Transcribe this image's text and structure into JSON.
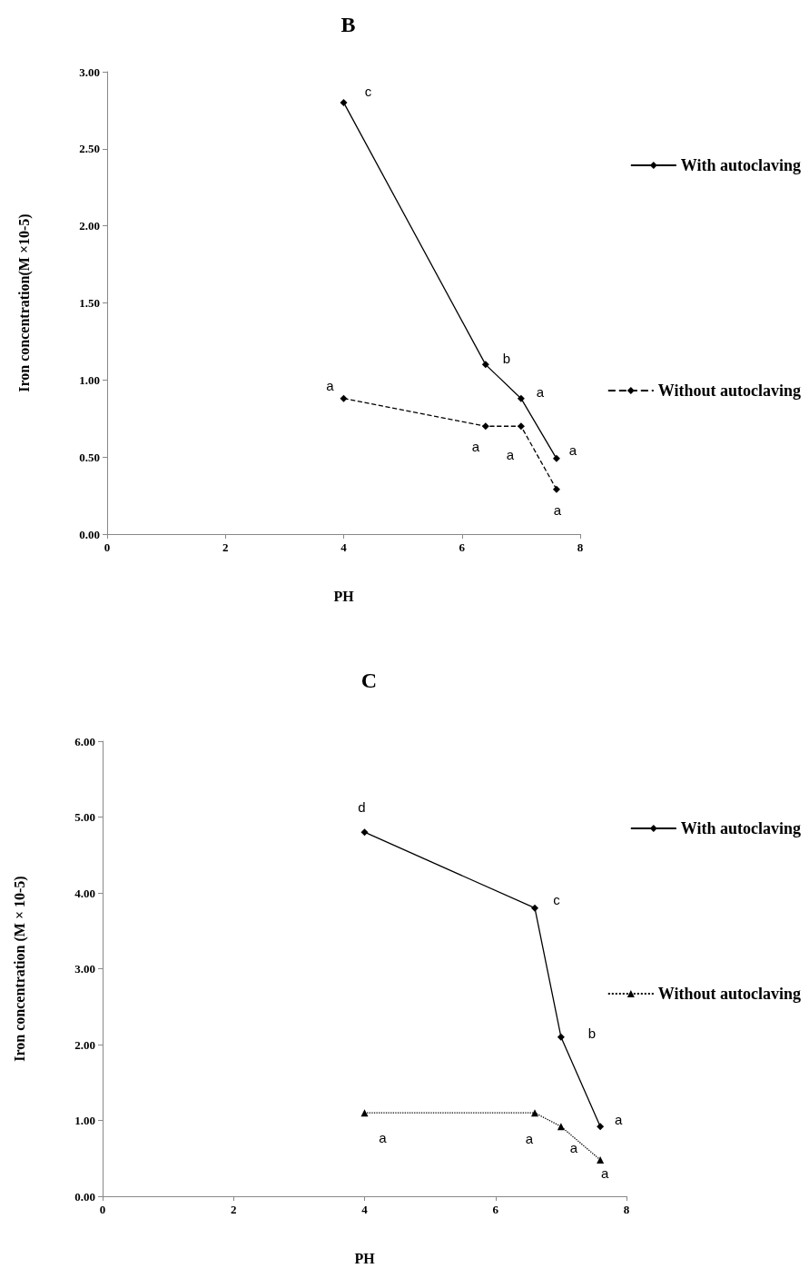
{
  "chart_data": [
    {
      "type": "line",
      "title": "B",
      "xlabel": "PH",
      "ylabel": "Iron concentration(M ×10-5)",
      "xlim": [
        0,
        8
      ],
      "xticks": [
        0,
        2,
        4,
        6,
        8
      ],
      "ylim": [
        0,
        3
      ],
      "yticks": [
        {
          "value": 0,
          "label": "0.00"
        },
        {
          "value": 0.5,
          "label": "0.50"
        },
        {
          "value": 1,
          "label": "1.00"
        },
        {
          "value": 1.5,
          "label": "1.50"
        },
        {
          "value": 2,
          "label": "2.00"
        },
        {
          "value": 2.5,
          "label": "2.50"
        },
        {
          "value": 3,
          "label": "3.00"
        }
      ],
      "grid": false,
      "legend": "right",
      "series": [
        {
          "name": "With autoclaving",
          "color": "#000000",
          "x": [
            4,
            6.4,
            7,
            7.6
          ],
          "values": [
            2.8,
            1.1,
            0.88,
            0.49
          ],
          "marker": "diamond",
          "line_style": "solid"
        },
        {
          "name": "Without autoclaving",
          "color": "#000000",
          "x": [
            4,
            6.4,
            7,
            7.6
          ],
          "values": [
            0.88,
            0.7,
            0.7,
            0.29
          ],
          "marker": "diamond",
          "line_style": "dashed"
        }
      ],
      "annotations": [
        {
          "text": "c",
          "x": 4,
          "y": 2.8
        },
        {
          "text": "b",
          "x": 6.4,
          "y": 1.1
        },
        {
          "text": "a",
          "x": 7,
          "y": 0.88
        },
        {
          "text": "a",
          "x": 7.6,
          "y": 0.49
        },
        {
          "text": "a",
          "x": 4,
          "y": 0.88
        },
        {
          "text": "a",
          "x": 6.4,
          "y": 0.7
        },
        {
          "text": "a",
          "x": 7,
          "y": 0.7
        },
        {
          "text": "a",
          "x": 7.6,
          "y": 0.29
        }
      ]
    },
    {
      "type": "line",
      "title": "C",
      "xlabel": "PH",
      "ylabel": "Iron concentration (M × 10-5)",
      "xlim": [
        0,
        8
      ],
      "xticks": [
        0,
        2,
        4,
        6,
        8
      ],
      "ylim": [
        0,
        6
      ],
      "yticks": [
        {
          "value": 0,
          "label": "0.00"
        },
        {
          "value": 1,
          "label": "1.00"
        },
        {
          "value": 2,
          "label": "2.00"
        },
        {
          "value": 3,
          "label": "3.00"
        },
        {
          "value": 4,
          "label": "4.00"
        },
        {
          "value": 5,
          "label": "5.00"
        },
        {
          "value": 6,
          "label": "6.00"
        }
      ],
      "grid": false,
      "legend": "right",
      "series": [
        {
          "name": "With autoclaving",
          "color": "#000000",
          "x": [
            4,
            6.6,
            7,
            7.6
          ],
          "values": [
            4.8,
            3.8,
            2.1,
            0.92
          ],
          "marker": "diamond",
          "line_style": "solid"
        },
        {
          "name": "Without autoclaving",
          "color": "#000000",
          "x": [
            4,
            6.6,
            7,
            7.6
          ],
          "values": [
            1.1,
            1.1,
            0.92,
            0.48
          ],
          "marker": "triangle",
          "line_style": "dotted"
        }
      ],
      "annotations": [
        {
          "text": "d",
          "x": 4,
          "y": 4.8
        },
        {
          "text": "c",
          "x": 6.6,
          "y": 3.8
        },
        {
          "text": "b",
          "x": 7,
          "y": 2.1
        },
        {
          "text": "a",
          "x": 7.6,
          "y": 0.92
        },
        {
          "text": "a",
          "x": 4,
          "y": 1.1
        },
        {
          "text": "a",
          "x": 6.6,
          "y": 1.1
        },
        {
          "text": "a",
          "x": 7,
          "y": 0.92
        },
        {
          "text": "a",
          "x": 7.6,
          "y": 0.48
        }
      ]
    }
  ]
}
